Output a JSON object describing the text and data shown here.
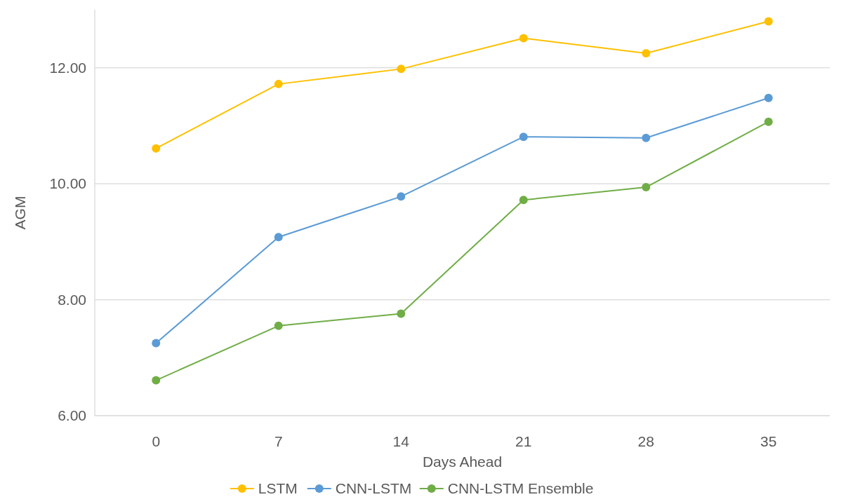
{
  "chart_data": {
    "type": "line",
    "xlabel": "Days Ahead",
    "ylabel": "AGM",
    "categories": [
      "0",
      "7",
      "14",
      "21",
      "28",
      "35"
    ],
    "series": [
      {
        "name": "LSTM",
        "color": "#ffc000",
        "values": [
          10.61,
          11.72,
          11.98,
          12.51,
          12.25,
          12.8
        ]
      },
      {
        "name": "CNN-LSTM",
        "color": "#5b9bd5",
        "values": [
          7.25,
          9.08,
          9.78,
          10.81,
          10.79,
          11.48
        ]
      },
      {
        "name": "CNN-LSTM Ensemble",
        "color": "#70ad47",
        "values": [
          6.61,
          7.55,
          7.76,
          9.72,
          9.94,
          11.07
        ]
      }
    ],
    "ylim": [
      6,
      13
    ],
    "yticks": [
      {
        "value": 6,
        "label": "6.00"
      },
      {
        "value": 8,
        "label": "8.00"
      },
      {
        "value": 10,
        "label": "10.00"
      },
      {
        "value": 12,
        "label": "12.00"
      }
    ],
    "grid": "y",
    "legend": "bottom",
    "marker": "circle",
    "line_style": "solid"
  }
}
